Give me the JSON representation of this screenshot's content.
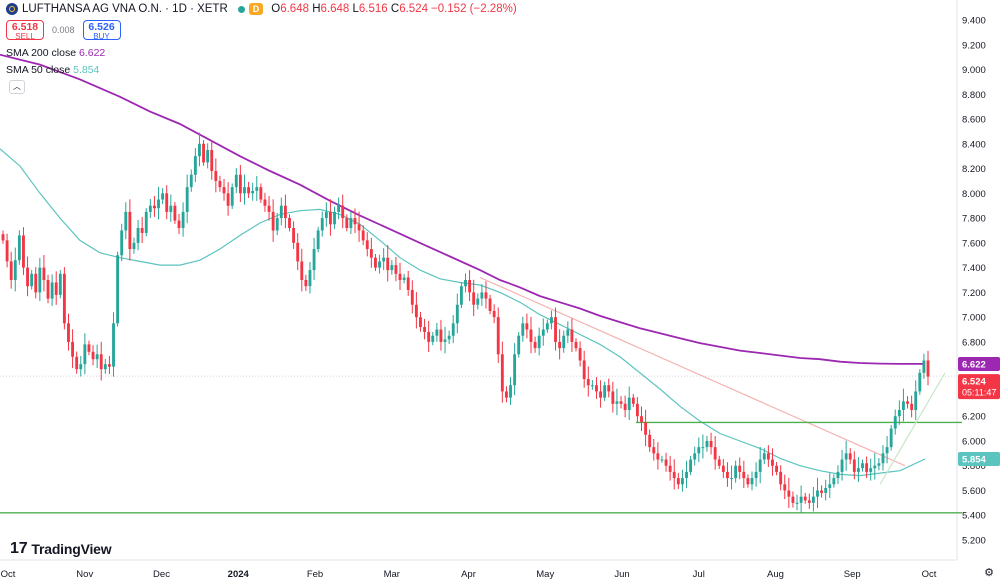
{
  "header": {
    "symbol": "LUFTHANSA AG VNA O.N. · 1D · XETR",
    "delay_badge": "D",
    "open_label": "O",
    "open": "6.648",
    "high_label": "H",
    "high": "6.648",
    "low_label": "L",
    "low": "6.516",
    "close_label": "C",
    "close": "6.524",
    "change": "−0.152 (−2.28%)"
  },
  "trade": {
    "sell_price": "6.518",
    "sell_label": "SELL",
    "spread": "0.008",
    "buy_price": "6.526",
    "buy_label": "BUY"
  },
  "indicators": {
    "sma200_label": "SMA 200 close",
    "sma200_value": "6.622",
    "sma50_label": "SMA 50 close",
    "sma50_value": "5.854"
  },
  "brand": "TradingView",
  "colors": {
    "up": "#26a69a",
    "down": "#f23645",
    "sma200": "#9c27b0",
    "sma50": "#5bc4bf",
    "support": "#4caf50",
    "trendline": "#f4b3b3"
  },
  "chart_data": {
    "type": "candlestick",
    "ylim": [
      5.2,
      9.4
    ],
    "y_ticks": [
      "9.400",
      "9.200",
      "9.000",
      "8.800",
      "8.600",
      "8.400",
      "8.200",
      "8.000",
      "7.800",
      "7.600",
      "7.400",
      "7.200",
      "7.000",
      "6.800",
      "6.600",
      "6.400",
      "6.200",
      "6.000",
      "5.800",
      "5.600",
      "5.400",
      "5.200"
    ],
    "x_ticks": [
      "Oct",
      "Nov",
      "Dec",
      "2024",
      "Feb",
      "Mar",
      "Apr",
      "May",
      "Jun",
      "Jul",
      "Aug",
      "Sep",
      "Oct"
    ],
    "price_labels": {
      "sma200": "6.622",
      "last": "6.524",
      "countdown": "05:11:47",
      "sma50": "5.854"
    },
    "closes": [
      7.62,
      7.45,
      7.3,
      7.46,
      7.66,
      7.4,
      7.25,
      7.35,
      7.2,
      7.4,
      7.3,
      7.15,
      7.28,
      7.18,
      7.35,
      6.95,
      6.8,
      6.68,
      6.58,
      6.62,
      6.78,
      6.72,
      6.66,
      6.7,
      6.58,
      6.62,
      6.6,
      6.95,
      7.5,
      7.7,
      7.85,
      7.55,
      7.6,
      7.72,
      7.68,
      7.85,
      7.9,
      7.88,
      7.95,
      8.0,
      7.85,
      7.9,
      7.78,
      7.72,
      7.85,
      8.05,
      8.15,
      8.3,
      8.4,
      8.25,
      8.35,
      8.18,
      8.1,
      8.05,
      8.0,
      7.9,
      8.05,
      8.15,
      8.0,
      8.05,
      8.0,
      8.02,
      8.05,
      7.95,
      7.9,
      7.85,
      7.7,
      7.8,
      7.9,
      7.8,
      7.72,
      7.6,
      7.45,
      7.3,
      7.25,
      7.38,
      7.55,
      7.7,
      7.8,
      7.85,
      7.75,
      7.85,
      7.9,
      7.8,
      7.72,
      7.8,
      7.75,
      7.7,
      7.62,
      7.55,
      7.48,
      7.4,
      7.45,
      7.48,
      7.38,
      7.42,
      7.35,
      7.3,
      7.32,
      7.22,
      7.1,
      7.0,
      6.92,
      6.88,
      6.8,
      6.85,
      6.9,
      6.8,
      6.82,
      6.85,
      6.95,
      7.1,
      7.25,
      7.3,
      7.2,
      7.1,
      7.15,
      7.2,
      7.15,
      7.05,
      7.0,
      6.7,
      6.4,
      6.35,
      6.45,
      6.7,
      6.85,
      6.95,
      6.9,
      6.8,
      6.75,
      6.85,
      6.9,
      6.95,
      7.0,
      6.8,
      6.75,
      6.85,
      6.9,
      6.8,
      6.75,
      6.65,
      6.5,
      6.45,
      6.45,
      6.4,
      6.35,
      6.45,
      6.4,
      6.3,
      6.32,
      6.3,
      6.25,
      6.35,
      6.3,
      6.2,
      6.15,
      6.05,
      5.95,
      5.9,
      5.85,
      5.85,
      5.8,
      5.75,
      5.7,
      5.65,
      5.7,
      5.75,
      5.85,
      5.9,
      5.95,
      5.95,
      6.0,
      5.95,
      5.85,
      5.8,
      5.75,
      5.7,
      5.7,
      5.8,
      5.75,
      5.7,
      5.65,
      5.7,
      5.75,
      5.85,
      5.9,
      5.85,
      5.8,
      5.75,
      5.65,
      5.6,
      5.55,
      5.5,
      5.5,
      5.55,
      5.52,
      5.5,
      5.55,
      5.6,
      5.58,
      5.62,
      5.65,
      5.7,
      5.75,
      5.85,
      5.9,
      5.85,
      5.75,
      5.78,
      5.82,
      5.75,
      5.78,
      5.8,
      5.82,
      5.9,
      5.95,
      6.1,
      6.2,
      6.25,
      6.32,
      6.3,
      6.25,
      6.4,
      6.55,
      6.65,
      6.52
    ],
    "lines": [
      {
        "name": "SMA 200 close",
        "color": "#9c27b0",
        "points": [
          [
            0,
            9.12
          ],
          [
            40,
            9.04
          ],
          [
            80,
            8.92
          ],
          [
            120,
            8.78
          ],
          [
            150,
            8.66
          ],
          [
            180,
            8.56
          ],
          [
            210,
            8.43
          ],
          [
            240,
            8.3
          ],
          [
            270,
            8.18
          ],
          [
            300,
            8.07
          ],
          [
            330,
            7.94
          ],
          [
            360,
            7.82
          ],
          [
            390,
            7.71
          ],
          [
            420,
            7.6
          ],
          [
            450,
            7.49
          ],
          [
            480,
            7.38
          ],
          [
            500,
            7.3
          ],
          [
            520,
            7.24
          ],
          [
            540,
            7.17
          ],
          [
            560,
            7.12
          ],
          [
            580,
            7.07
          ],
          [
            600,
            7.01
          ],
          [
            620,
            6.96
          ],
          [
            640,
            6.91
          ],
          [
            660,
            6.87
          ],
          [
            680,
            6.83
          ],
          [
            700,
            6.79
          ],
          [
            720,
            6.76
          ],
          [
            740,
            6.73
          ],
          [
            760,
            6.71
          ],
          [
            780,
            6.69
          ],
          [
            800,
            6.67
          ],
          [
            820,
            6.66
          ],
          [
            840,
            6.64
          ],
          [
            860,
            6.63
          ],
          [
            880,
            6.625
          ],
          [
            900,
            6.622
          ],
          [
            925,
            6.622
          ]
        ]
      },
      {
        "name": "SMA 50 close",
        "color": "#5bc4bf",
        "points": [
          [
            0,
            8.36
          ],
          [
            20,
            8.22
          ],
          [
            40,
            8.0
          ],
          [
            60,
            7.8
          ],
          [
            80,
            7.62
          ],
          [
            100,
            7.52
          ],
          [
            120,
            7.48
          ],
          [
            140,
            7.45
          ],
          [
            160,
            7.42
          ],
          [
            180,
            7.42
          ],
          [
            200,
            7.46
          ],
          [
            220,
            7.55
          ],
          [
            240,
            7.66
          ],
          [
            260,
            7.76
          ],
          [
            280,
            7.83
          ],
          [
            300,
            7.86
          ],
          [
            320,
            7.87
          ],
          [
            340,
            7.83
          ],
          [
            360,
            7.75
          ],
          [
            380,
            7.62
          ],
          [
            400,
            7.48
          ],
          [
            420,
            7.38
          ],
          [
            440,
            7.31
          ],
          [
            460,
            7.28
          ],
          [
            480,
            7.26
          ],
          [
            500,
            7.2
          ],
          [
            520,
            7.12
          ],
          [
            540,
            7.02
          ],
          [
            560,
            6.94
          ],
          [
            580,
            6.86
          ],
          [
            600,
            6.78
          ],
          [
            620,
            6.68
          ],
          [
            640,
            6.55
          ],
          [
            660,
            6.42
          ],
          [
            680,
            6.28
          ],
          [
            700,
            6.16
          ],
          [
            720,
            6.06
          ],
          [
            740,
            6.0
          ],
          [
            760,
            5.94
          ],
          [
            780,
            5.86
          ],
          [
            800,
            5.8
          ],
          [
            820,
            5.76
          ],
          [
            840,
            5.73
          ],
          [
            860,
            5.72
          ],
          [
            880,
            5.74
          ],
          [
            900,
            5.76
          ],
          [
            925,
            5.854
          ]
        ]
      },
      {
        "name": "Downtrend line",
        "color": "#f4b3b3",
        "points": [
          [
            480,
            7.32
          ],
          [
            905,
            5.8
          ]
        ]
      },
      {
        "name": "Support 6.15",
        "color": "#4caf50",
        "points": [
          [
            636,
            6.15
          ],
          [
            962,
            6.15
          ]
        ]
      },
      {
        "name": "Support 5.42",
        "color": "#4caf50",
        "points": [
          [
            0,
            5.42
          ],
          [
            962,
            5.42
          ]
        ]
      },
      {
        "name": "Uptrend line",
        "color": "#c8e6c9",
        "points": [
          [
            880,
            5.65
          ],
          [
            945,
            6.55
          ]
        ]
      }
    ]
  }
}
